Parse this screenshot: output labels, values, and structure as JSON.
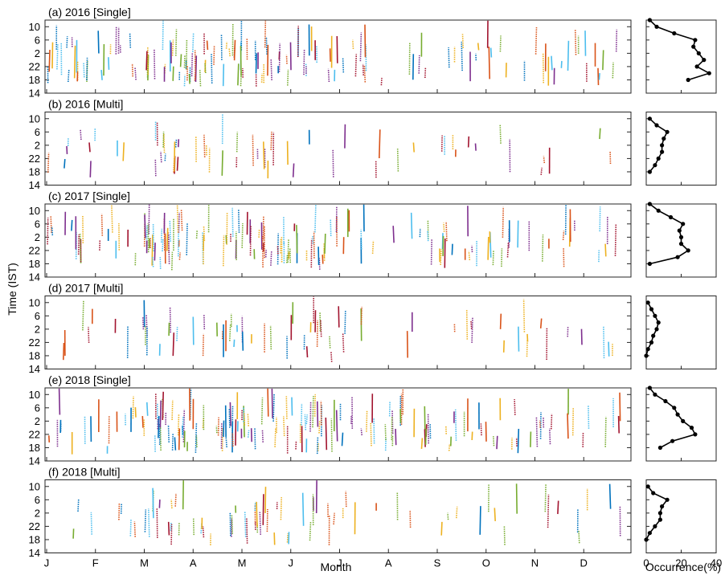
{
  "figure": {
    "ylabel": "Time (IST)",
    "xlabel": "Month",
    "side_xlabel": "Occurrence(%)",
    "month_ticks": [
      "J",
      "F",
      "M",
      "A",
      "M",
      "J",
      "J",
      "A",
      "S",
      "O",
      "N",
      "D"
    ],
    "time_ticks": [
      "10",
      "6",
      "2",
      "22",
      "18",
      "14"
    ],
    "occurrence_ticks": [
      "0",
      "20",
      "40"
    ],
    "series_colors": [
      "#0072BD",
      "#D95319",
      "#EDB120",
      "#7E2F8E",
      "#77AC30",
      "#4DBEEE",
      "#A2142F"
    ]
  },
  "chart_data": [
    {
      "type": "scatter",
      "title": "(a) 2016 [Single]",
      "xlabel": "",
      "ylabel": "Time (IST)",
      "x_ticks": [
        "J",
        "F",
        "M",
        "A",
        "M",
        "J",
        "J",
        "A",
        "S",
        "O",
        "N",
        "D"
      ],
      "y_ticks": [
        "10",
        "6",
        "2",
        "22",
        "18",
        "14"
      ],
      "y_direction": "reversed, 14 IST (bottom) to 12 IST next day (top)",
      "approx_events": 150,
      "occurrence_profile": {
        "time_ist": [
          "12",
          "10",
          "8",
          "6",
          "4",
          "2",
          "0",
          "22",
          "20",
          "18",
          "16",
          "14"
        ],
        "occurrence_pct": [
          2,
          6,
          16,
          28,
          27,
          30,
          33,
          29,
          36,
          24,
          0,
          0
        ]
      }
    },
    {
      "type": "scatter",
      "title": "(b) 2016 [Multi]",
      "xlabel": "",
      "ylabel": "Time (IST)",
      "x_ticks": [
        "J",
        "F",
        "M",
        "A",
        "M",
        "J",
        "J",
        "A",
        "S",
        "O",
        "N",
        "D"
      ],
      "y_ticks": [
        "10",
        "6",
        "2",
        "22",
        "18",
        "14"
      ],
      "approx_events": 60,
      "occurrence_profile": {
        "time_ist": [
          "12",
          "10",
          "8",
          "6",
          "4",
          "2",
          "0",
          "22",
          "20",
          "18",
          "16",
          "14"
        ],
        "occurrence_pct": [
          0,
          2,
          6,
          12,
          10,
          9,
          9,
          7,
          5,
          2,
          0,
          0
        ]
      }
    },
    {
      "type": "scatter",
      "title": "(c) 2017 [Single]",
      "xlabel": "",
      "ylabel": "Time (IST)",
      "x_ticks": [
        "J",
        "F",
        "M",
        "A",
        "M",
        "J",
        "J",
        "A",
        "S",
        "O",
        "N",
        "D"
      ],
      "y_ticks": [
        "10",
        "6",
        "2",
        "22",
        "18",
        "14"
      ],
      "approx_events": 155,
      "occurrence_profile": {
        "time_ist": [
          "12",
          "10",
          "8",
          "6",
          "4",
          "2",
          "0",
          "22",
          "20",
          "18",
          "16",
          "14"
        ],
        "occurrence_pct": [
          2,
          7,
          14,
          21,
          19,
          20,
          20,
          24,
          18,
          2,
          0,
          0
        ]
      }
    },
    {
      "type": "scatter",
      "title": "(d) 2017 [Multi]",
      "xlabel": "",
      "ylabel": "Time (IST)",
      "x_ticks": [
        "J",
        "F",
        "M",
        "A",
        "M",
        "J",
        "J",
        "A",
        "S",
        "O",
        "N",
        "D"
      ],
      "y_ticks": [
        "10",
        "6",
        "2",
        "22",
        "18",
        "14"
      ],
      "approx_events": 70,
      "occurrence_profile": {
        "time_ist": [
          "12",
          "10",
          "8",
          "6",
          "4",
          "2",
          "0",
          "22",
          "20",
          "18",
          "16",
          "14"
        ],
        "occurrence_pct": [
          0,
          1,
          3,
          5,
          7,
          6,
          4,
          3,
          1,
          0,
          0,
          0
        ]
      }
    },
    {
      "type": "scatter",
      "title": "(e) 2018 [Single]",
      "xlabel": "",
      "ylabel": "Time (IST)",
      "x_ticks": [
        "J",
        "F",
        "M",
        "A",
        "M",
        "J",
        "J",
        "A",
        "S",
        "O",
        "N",
        "D"
      ],
      "y_ticks": [
        "10",
        "6",
        "2",
        "22",
        "18",
        "14"
      ],
      "approx_events": 165,
      "occurrence_profile": {
        "time_ist": [
          "12",
          "10",
          "8",
          "6",
          "4",
          "2",
          "0",
          "22",
          "20",
          "18",
          "16",
          "14"
        ],
        "occurrence_pct": [
          2,
          5,
          11,
          16,
          18,
          21,
          26,
          28,
          15,
          8,
          0,
          0
        ]
      }
    },
    {
      "type": "scatter",
      "title": "(f) 2018 [Multi]",
      "xlabel": "Month",
      "ylabel": "Time (IST)",
      "x_ticks": [
        "J",
        "F",
        "M",
        "A",
        "M",
        "J",
        "J",
        "A",
        "S",
        "O",
        "N",
        "D"
      ],
      "y_ticks": [
        "10",
        "6",
        "2",
        "22",
        "18",
        "14"
      ],
      "approx_events": 75,
      "occurrence_profile": {
        "time_ist": [
          "12",
          "10",
          "8",
          "6",
          "4",
          "2",
          "0",
          "22",
          "20",
          "18",
          "16",
          "14"
        ],
        "occurrence_pct": [
          0,
          1,
          4,
          12,
          9,
          8,
          8,
          5,
          2,
          0,
          0,
          0
        ]
      }
    }
  ]
}
